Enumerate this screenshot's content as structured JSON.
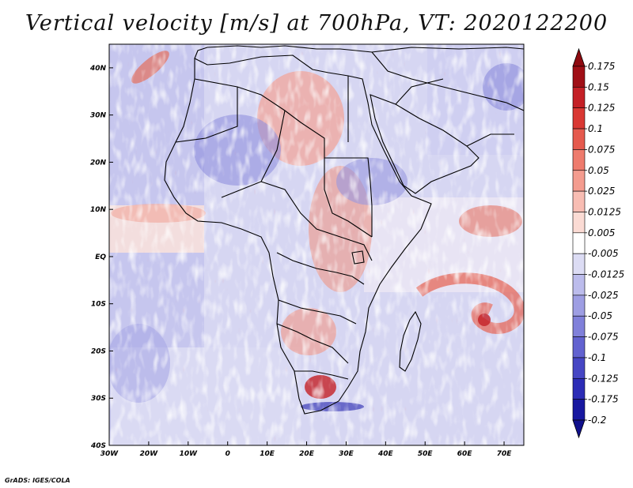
{
  "title": "Vertical velocity [m/s] at 700hPa, VT: 2020122200",
  "footer": "GrADS: IGES/COLA",
  "map": {
    "lon_ticks": [
      "30W",
      "20W",
      "10W",
      "0",
      "10E",
      "20E",
      "30E",
      "40E",
      "50E",
      "60E",
      "70E"
    ],
    "lat_ticks": [
      "40N",
      "30N",
      "20N",
      "10N",
      "EQ",
      "10S",
      "20S",
      "30S",
      "40S"
    ],
    "lon_range_deg": [
      -30,
      75
    ],
    "lat_range_deg": [
      -40,
      45
    ]
  },
  "colorbar": {
    "labels": [
      "0.175",
      "0.15",
      "0.125",
      "0.1",
      "0.075",
      "0.05",
      "0.025",
      "0.0125",
      "0.005",
      "-0.005",
      "-0.0125",
      "-0.025",
      "-0.05",
      "-0.075",
      "-0.1",
      "-0.125",
      "-0.175",
      "-0.2"
    ],
    "colors": [
      "#a00f16",
      "#c42026",
      "#d93833",
      "#e55a4e",
      "#ee7b6d",
      "#f49c8f",
      "#f8bdb3",
      "#fbdbd4",
      "#ffffff",
      "#dcdcf4",
      "#bcbcec",
      "#9e9ee3",
      "#8080da",
      "#6262d0",
      "#4646c4",
      "#2c2cb6",
      "#1818a0"
    ],
    "top_arrow_color": "#8e0a10",
    "bottom_arrow_color": "#10108c"
  }
}
